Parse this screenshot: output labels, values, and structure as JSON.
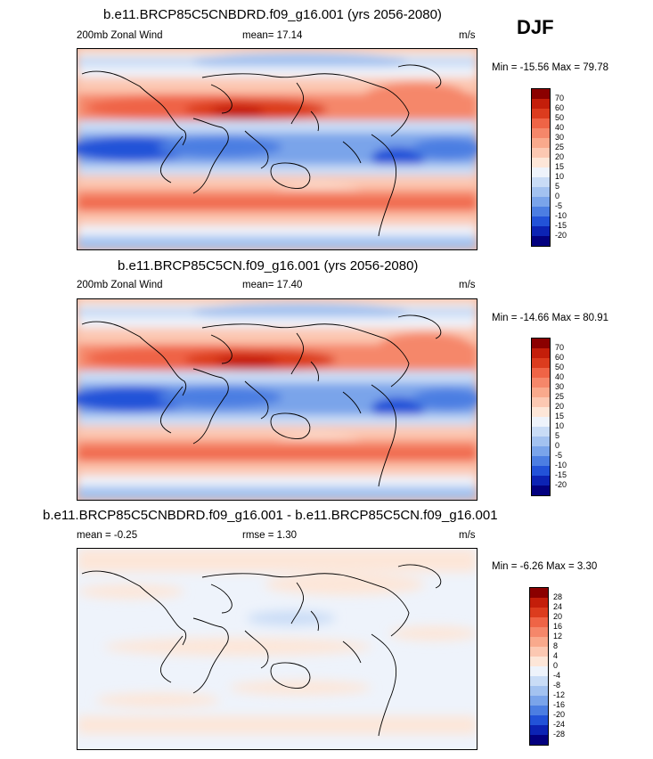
{
  "season": "DJF",
  "panels": [
    {
      "title": "b.e11.BRCP85C5CNBDRD.f09_g16.001 (yrs 2056-2080)",
      "left_label": "200mb Zonal Wind",
      "center_label": "mean=  17.14",
      "units": "m/s",
      "minmax": "Min = -15.56 Max =  79.78",
      "colorbar_labels": [
        "70",
        "60",
        "50",
        "40",
        "30",
        "25",
        "20",
        "15",
        "10",
        "5",
        "0",
        "-5",
        "-10",
        "-15",
        "-20"
      ]
    },
    {
      "title": "b.e11.BRCP85C5CN.f09_g16.001 (yrs 2056-2080)",
      "left_label": "200mb Zonal Wind",
      "center_label": "mean=  17.40",
      "units": "m/s",
      "minmax": "Min = -14.66 Max =  80.91",
      "colorbar_labels": [
        "70",
        "60",
        "50",
        "40",
        "30",
        "25",
        "20",
        "15",
        "10",
        "5",
        "0",
        "-5",
        "-10",
        "-15",
        "-20"
      ]
    },
    {
      "title": "b.e11.BRCP85C5CNBDRD.f09_g16.001 - b.e11.BRCP85C5CN.f09_g16.001",
      "left_label": "mean =  -0.25",
      "center_label": "rmse =   1.30",
      "units": "m/s",
      "minmax": "Min =  -6.26 Max =   3.30",
      "colorbar_labels": [
        "28",
        "24",
        "20",
        "16",
        "12",
        "8",
        "4",
        "0",
        "-4",
        "-8",
        "-12",
        "-16",
        "-20",
        "-24",
        "-28"
      ]
    }
  ],
  "colorbar_colors": [
    "#8b0000",
    "#c41e0a",
    "#dc3c1e",
    "#ef6446",
    "#f5876a",
    "#f9a98c",
    "#fcc8b2",
    "#fde6d8",
    "#eef3fb",
    "#c9dcf6",
    "#a3c2f0",
    "#7aa4ea",
    "#4c7ee2",
    "#2252d8",
    "#0c23b4",
    "#03007f"
  ]
}
